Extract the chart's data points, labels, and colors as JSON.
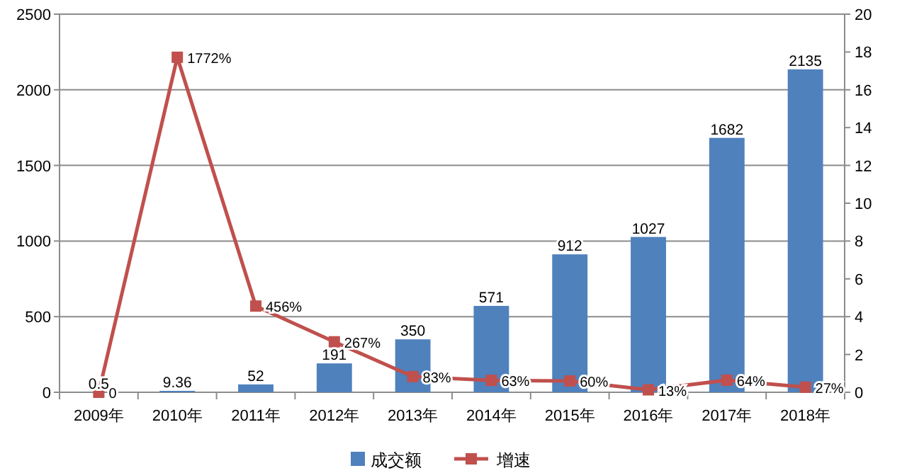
{
  "chart_data": {
    "type": "bar",
    "categories": [
      "2009年",
      "2010年",
      "2011年",
      "2012年",
      "2013年",
      "2014年",
      "2015年",
      "2016年",
      "2017年",
      "2018年"
    ],
    "ylim": [
      0,
      2500
    ],
    "yticks": [
      0,
      500,
      1000,
      1500,
      2000,
      2500
    ],
    "y2lim": [
      0,
      20
    ],
    "y2ticks": [
      0,
      2,
      4,
      6,
      8,
      10,
      12,
      14,
      16,
      18,
      20
    ],
    "grid": "y",
    "legend": "bottom",
    "marker": "square",
    "line_style": "solid",
    "series": [
      {
        "name": "成交额",
        "color": "#4f81bd",
        "values": [
          0.5,
          9.36,
          52,
          191,
          350,
          571,
          912,
          1027,
          1682,
          2135
        ],
        "value_labels": [
          "0.5",
          "9.36",
          "52",
          "191",
          "350",
          "571",
          "912",
          "1027",
          "1682",
          "2135"
        ]
      },
      {
        "name": "增速",
        "type": "line",
        "axis": "y2",
        "color": "#c0504d",
        "values": [
          0,
          17.72,
          4.56,
          2.67,
          0.83,
          0.63,
          0.6,
          0.13,
          0.64,
          0.27
        ],
        "value_labels": [
          "0",
          "1772%",
          "456%",
          "267%",
          "83%",
          "63%",
          "60%",
          "13%",
          "64%",
          "27%"
        ]
      }
    ]
  }
}
